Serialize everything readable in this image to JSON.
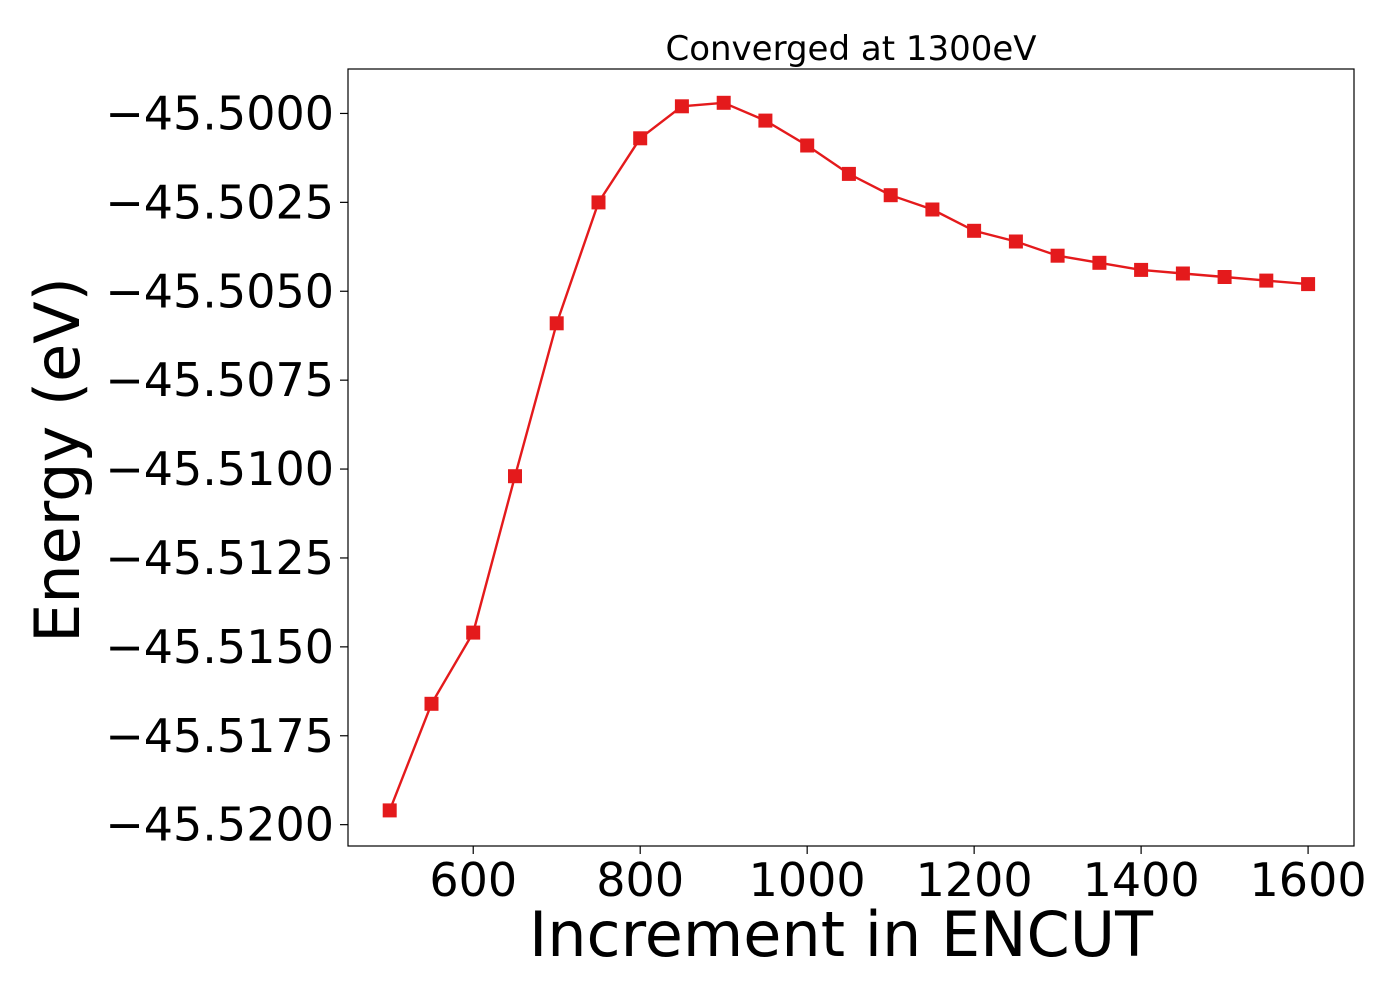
{
  "chart_data": {
    "type": "line",
    "title": "Converged at 1300eV",
    "xlabel": "Increment in ENCUT",
    "ylabel": "Energy (eV)",
    "xlim": [
      450,
      1655
    ],
    "ylim": [
      -45.5206,
      -45.49875
    ],
    "grid": false,
    "x_ticks": [
      600,
      800,
      1000,
      1200,
      1400,
      1600
    ],
    "x_tick_labels": [
      "600",
      "800",
      "1000",
      "1200",
      "1400",
      "1600"
    ],
    "y_ticks": [
      -45.5,
      -45.5025,
      -45.505,
      -45.5075,
      -45.51,
      -45.5125,
      -45.515,
      -45.5175,
      -45.52
    ],
    "y_tick_labels": [
      "−45.5000",
      "−45.5025",
      "−45.5050",
      "−45.5075",
      "−45.5100",
      "−45.5125",
      "−45.5150",
      "−45.5175",
      "−45.5200"
    ],
    "series": [
      {
        "color": "#e41a1c",
        "marker": "square",
        "x": [
          500,
          550,
          600,
          650,
          700,
          750,
          800,
          850,
          900,
          950,
          1000,
          1050,
          1100,
          1150,
          1200,
          1250,
          1300,
          1350,
          1400,
          1450,
          1500,
          1550,
          1600
        ],
        "y": [
          -45.5196,
          -45.5166,
          -45.5146,
          -45.5102,
          -45.5059,
          -45.5025,
          -45.5007,
          -45.4998,
          -45.4997,
          -45.5002,
          -45.5009,
          -45.5017,
          -45.5023,
          -45.5027,
          -45.5033,
          -45.5036,
          -45.504,
          -45.5042,
          -45.5044,
          -45.5045,
          -45.5046,
          -45.5047,
          -45.5048
        ]
      }
    ]
  }
}
